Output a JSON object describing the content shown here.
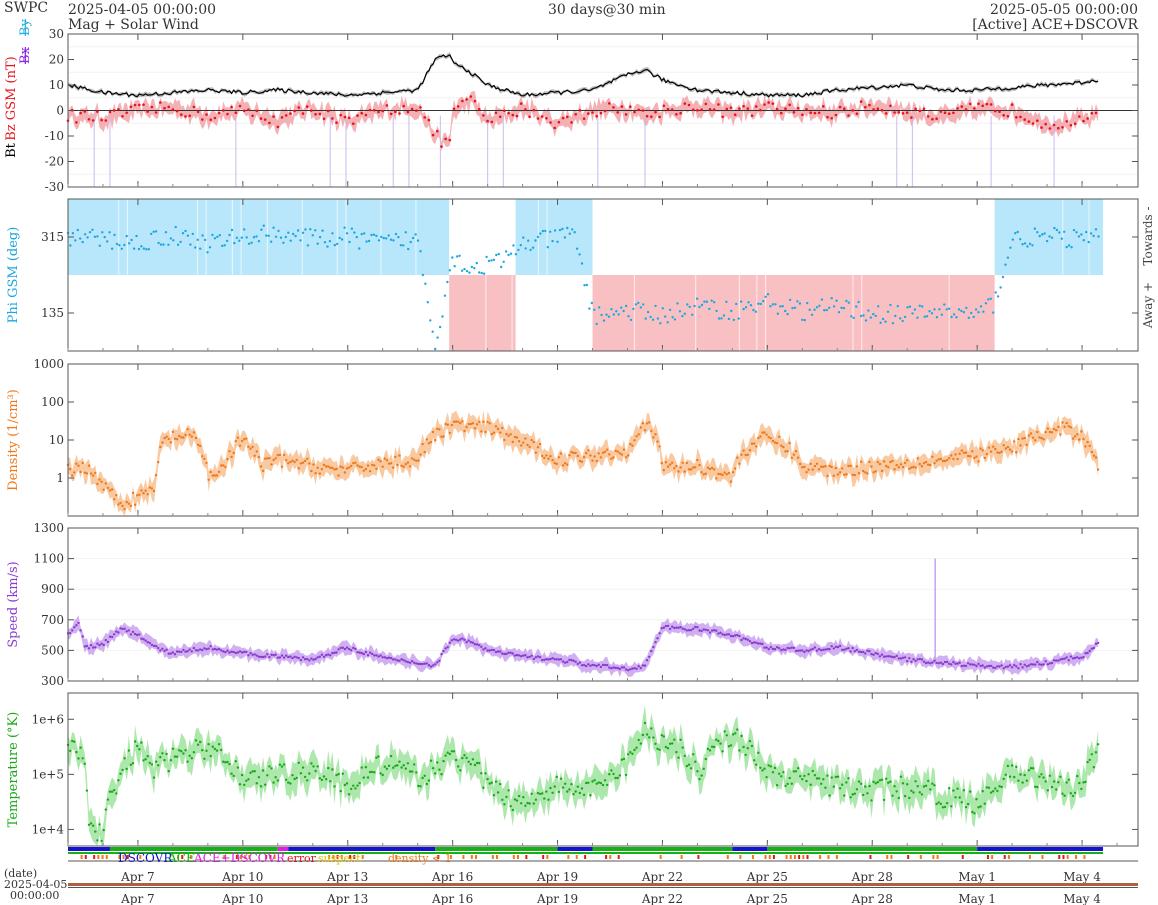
{
  "header": {
    "brand": "SWPC",
    "start_time": "2025-04-05 00:00:00",
    "title": "Mag + Solar Wind",
    "span": "30 days@30 min",
    "end_time": "2025-05-05 00:00:00",
    "source": "[Active] ACE+DSCOVR"
  },
  "colors": {
    "bt": "#000000",
    "bz": "#e8141c",
    "bz_fill": "#f2a3a8",
    "by": "#2ab0e0",
    "bx": "#8a2be2",
    "phi": "#1aa7e0",
    "towards_fill": "#b8e6fa",
    "away_fill": "#f9c0c4",
    "density": "#f07818",
    "density_fill": "#f8c090",
    "speed": "#8a3cd0",
    "speed_fill": "#c9a2ee",
    "temperature": "#1aa81a",
    "temperature_fill": "#9ee39e",
    "src_dscovr": "#1414cc",
    "src_ace": "#18b018",
    "src_both": "#e020e0",
    "flag_error": "#e01818",
    "flag_suspect": "#e0c000",
    "flag_density": "#f07818"
  },
  "legend": {
    "dscovr": "DSCOVR",
    "ace": "ACE",
    "ace_dscovr": "ACE+DSCOVR",
    "error": "error",
    "suspect": "suspect",
    "density": "density < 1"
  },
  "footer": {
    "date_label": "(date)",
    "date_value": "2025-04-05",
    "time_value": "00:00:00"
  },
  "chart_data": [
    {
      "type": "line",
      "ylabel_parts": [
        "Bt",
        "Bz GSM (nT)",
        "Bx",
        "By"
      ],
      "ylim": [
        -30,
        30
      ],
      "yticks": [
        -30,
        -20,
        -10,
        0,
        10,
        20,
        30
      ],
      "x_range_days": [
        0,
        30
      ],
      "series": [
        {
          "name": "Bt",
          "x": [
            0,
            1,
            2,
            3,
            4,
            5,
            6,
            7,
            8,
            9,
            10,
            10.5,
            10.9,
            11,
            11.5,
            12,
            12.5,
            13,
            14,
            15,
            16,
            16.5,
            17,
            18,
            19,
            20,
            21,
            22,
            23,
            24,
            25,
            26,
            27,
            28,
            29,
            29.5
          ],
          "values": [
            10,
            7,
            6,
            7,
            8,
            7,
            8,
            7,
            6,
            7,
            8,
            20,
            22,
            19,
            15,
            10,
            8,
            6,
            7,
            8,
            14,
            16,
            12,
            8,
            7,
            6,
            6,
            8,
            9,
            10,
            8,
            8,
            9,
            10,
            11,
            12
          ]
        },
        {
          "name": "Bz GSM",
          "x": [
            0,
            1,
            2,
            3,
            4,
            5,
            6,
            7,
            8,
            9,
            10,
            10.5,
            10.9,
            11,
            11.5,
            12,
            12.5,
            13,
            14,
            15,
            16,
            16.5,
            17,
            18,
            19,
            20,
            21,
            22,
            23,
            24,
            25,
            26,
            27,
            28,
            29,
            29.5
          ],
          "values": [
            -2,
            -3,
            0,
            1,
            -2,
            0,
            -4,
            1,
            -5,
            0,
            2,
            -10,
            -14,
            0,
            4,
            -4,
            -2,
            1,
            -5,
            0,
            1,
            -2,
            0,
            2,
            -1,
            1,
            0,
            -1,
            2,
            0,
            -3,
            1,
            0,
            -5,
            -4,
            -3
          ]
        }
      ]
    },
    {
      "type": "scatter",
      "ylabel": "Phi GSM (deg)",
      "ylim": [
        45,
        405
      ],
      "yticks": [
        135,
        315
      ],
      "right_labels": [
        "Towards -",
        "Away +"
      ],
      "sectors": [
        {
          "start": 0,
          "end": 10.9,
          "polarity": "towards"
        },
        {
          "start": 10.9,
          "end": 12.8,
          "polarity": "away"
        },
        {
          "start": 12.8,
          "end": 15,
          "polarity": "towards"
        },
        {
          "start": 15,
          "end": 26.5,
          "polarity": "away"
        },
        {
          "start": 26.5,
          "end": 29.6,
          "polarity": "towards"
        }
      ],
      "series": [
        {
          "name": "Phi GSM",
          "x": [
            0,
            1,
            2,
            3,
            4,
            5,
            6,
            7,
            8,
            9,
            10,
            10.5,
            11,
            11.5,
            12,
            12.5,
            13,
            13.5,
            14,
            14.5,
            15,
            16,
            17,
            18,
            19,
            20,
            21,
            22,
            23,
            24,
            25,
            26,
            26.5,
            27,
            28,
            29,
            29.5
          ],
          "values": [
            315,
            310,
            300,
            320,
            300,
            315,
            325,
            310,
            315,
            300,
            310,
            60,
            270,
            240,
            250,
            260,
            300,
            305,
            315,
            320,
            130,
            140,
            130,
            150,
            140,
            160,
            140,
            150,
            135,
            130,
            140,
            130,
            160,
            310,
            315,
            310,
            315
          ]
        }
      ]
    },
    {
      "type": "line",
      "ylabel": "Density (1/cm³)",
      "yscale": "log",
      "ylim": [
        0.1,
        1000
      ],
      "ytick_labels": [
        "1",
        "10",
        "100",
        "1000"
      ],
      "series": [
        {
          "name": "Density",
          "x": [
            0,
            0.5,
            1,
            1.5,
            2,
            2.5,
            2.8,
            3,
            3.5,
            4,
            4.5,
            5,
            5.5,
            6,
            7,
            8,
            9,
            10,
            10.5,
            11,
            12,
            13,
            14,
            15,
            16,
            16.5,
            17,
            18,
            19,
            20,
            21,
            22,
            23,
            24,
            25,
            26,
            27,
            28,
            28.5,
            29,
            29.5
          ],
          "values": [
            1.5,
            2,
            0.6,
            0.2,
            0.3,
            0.5,
            10,
            12,
            13,
            1,
            2,
            10,
            2,
            3,
            2,
            1.5,
            2.5,
            3,
            12,
            25,
            20,
            8,
            3,
            4,
            5,
            25,
            2,
            2,
            1,
            12,
            2,
            1.5,
            2,
            2.5,
            3,
            4,
            6,
            15,
            20,
            12,
            1.5
          ]
        }
      ]
    },
    {
      "type": "line",
      "ylabel": "Speed (km/s)",
      "ylim": [
        300,
        1300
      ],
      "yticks": [
        300,
        500,
        700,
        900,
        1100,
        1300
      ],
      "series": [
        {
          "name": "Speed",
          "x": [
            0,
            0.3,
            0.5,
            1,
            1.5,
            2,
            2.5,
            3,
            4,
            5,
            6,
            7,
            8,
            9,
            10,
            10.5,
            11,
            11.5,
            12,
            13,
            14,
            15,
            16,
            16.5,
            17,
            18,
            19,
            20,
            21,
            22,
            23,
            24,
            25,
            26,
            27,
            28,
            29,
            29.5
          ],
          "values": [
            600,
            680,
            520,
            540,
            640,
            600,
            520,
            480,
            520,
            480,
            460,
            440,
            520,
            450,
            420,
            400,
            580,
            560,
            500,
            460,
            440,
            400,
            380,
            400,
            650,
            640,
            600,
            520,
            500,
            520,
            480,
            440,
            420,
            400,
            390,
            420,
            460,
            560
          ]
        }
      ]
    },
    {
      "type": "line",
      "ylabel": "Temperature (°K)",
      "yscale": "log",
      "ylim": [
        5000,
        3000000
      ],
      "ytick_labels": [
        "1e+4",
        "1e+5",
        "1e+6"
      ],
      "series": [
        {
          "name": "Temperature",
          "x": [
            0,
            0.3,
            0.6,
            1,
            1.5,
            2,
            2.5,
            3,
            3.5,
            4,
            5,
            6,
            7,
            8,
            9,
            10,
            10.5,
            11,
            11.5,
            12,
            12.5,
            13,
            14,
            15,
            16,
            16.5,
            17,
            17.5,
            18,
            19,
            20,
            21,
            22,
            23,
            24,
            25,
            26,
            27,
            28,
            28.5,
            29,
            29.5
          ],
          "values": [
            400000,
            300000,
            15000,
            6000,
            80000,
            300000,
            120000,
            200000,
            250000,
            300000,
            80000,
            100000,
            120000,
            60000,
            150000,
            90000,
            120000,
            200000,
            150000,
            60000,
            40000,
            30000,
            60000,
            50000,
            150000,
            600000,
            400000,
            300000,
            100000,
            500000,
            100000,
            80000,
            60000,
            50000,
            60000,
            40000,
            30000,
            100000,
            80000,
            50000,
            80000,
            250000
          ]
        }
      ]
    }
  ],
  "x_axis": {
    "tick_labels": [
      "Apr 7",
      "Apr 10",
      "Apr 13",
      "Apr 16",
      "Apr 19",
      "Apr 22",
      "Apr 25",
      "Apr 28",
      "May 1",
      "May 4"
    ],
    "tick_days": [
      2,
      5,
      8,
      11,
      14,
      17,
      20,
      23,
      26,
      29
    ]
  }
}
